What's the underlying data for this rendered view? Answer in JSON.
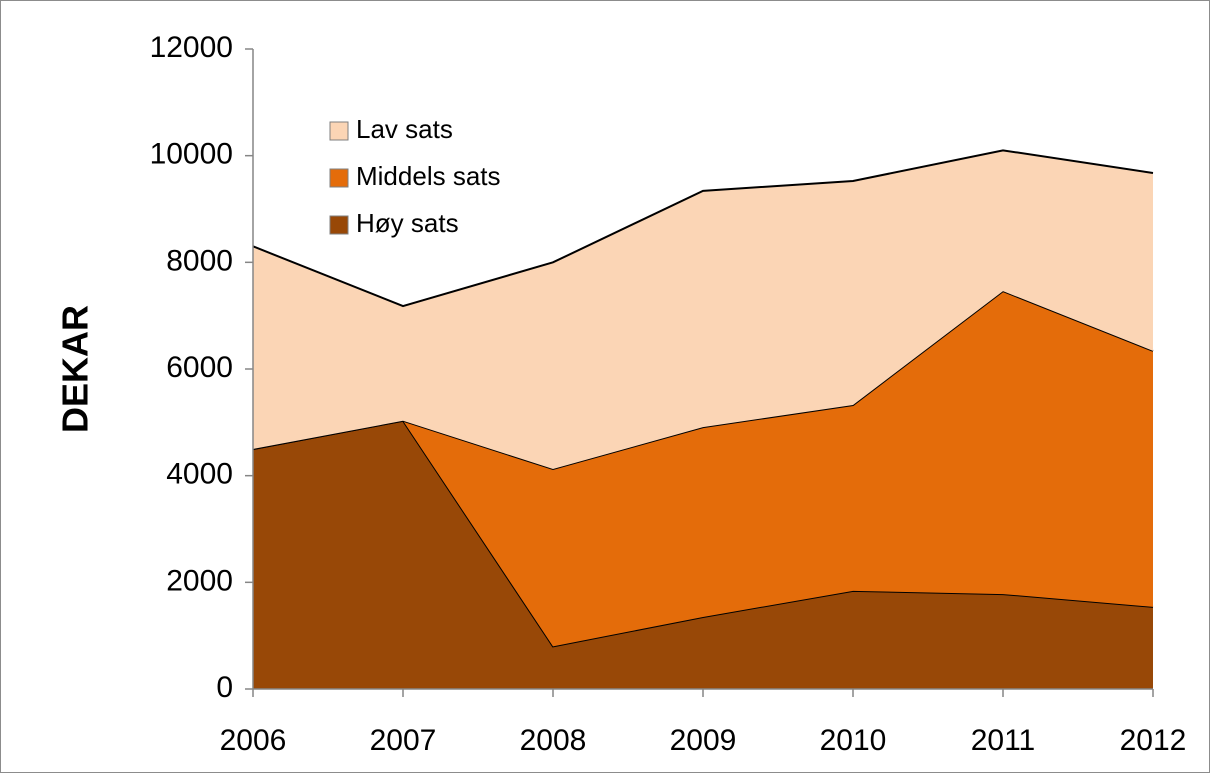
{
  "chart_data": {
    "type": "stacked_area",
    "y_label": "DEKAR",
    "categories": [
      "2006",
      "2007",
      "2008",
      "2009",
      "2010",
      "2011",
      "2012"
    ],
    "series": [
      {
        "name": "Høy sats",
        "color": "#984807",
        "values": [
          4500,
          5030,
          800,
          1350,
          1840,
          1780,
          1540
        ]
      },
      {
        "name": "Middels sats",
        "color": "#e46c0a",
        "values": [
          0,
          0,
          3325,
          3560,
          3485,
          5680,
          4800
        ]
      },
      {
        "name": "Lav sats",
        "color": "#fbd5b5",
        "values": [
          3800,
          2150,
          3875,
          4430,
          4200,
          2640,
          3335
        ]
      }
    ],
    "ylim": [
      0,
      12000
    ],
    "yticks": [
      0,
      2000,
      4000,
      6000,
      8000,
      10000,
      12000
    ],
    "grid": false,
    "legend": "upper-left"
  }
}
